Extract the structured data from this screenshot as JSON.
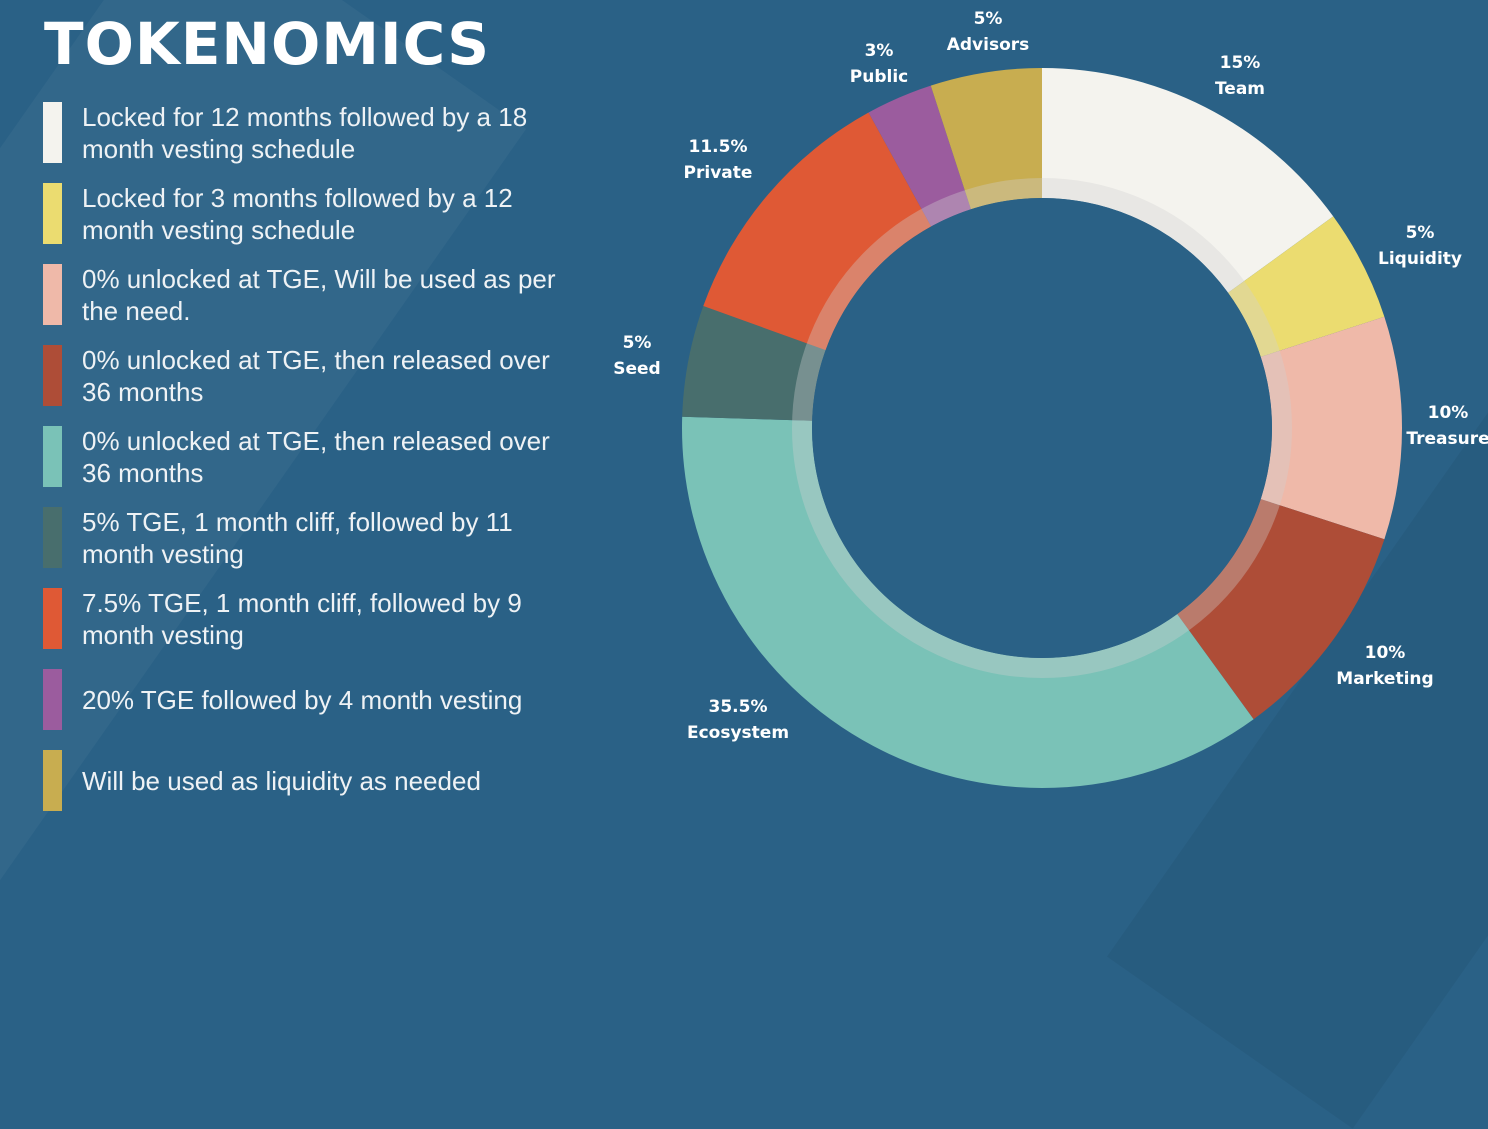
{
  "chart_data": {
    "type": "pie",
    "title": "TOKENOMICS",
    "donut": true,
    "slices": [
      {
        "label": "Team",
        "value": 15,
        "value_label": "15%",
        "color": "#f4f3ee",
        "legend": "Locked for 12 months followed by a 18 month vesting schedule"
      },
      {
        "label": "Liquidity",
        "value": 5,
        "value_label": "5%",
        "color": "#ebdc70",
        "legend": "Locked for 3 months followed by a 12 month vesting schedule"
      },
      {
        "label": "Treasure",
        "value": 10,
        "value_label": "10%",
        "color": "#efb9a9",
        "legend": "0% unlocked at TGE, Will be used as per the need."
      },
      {
        "label": "Marketing",
        "value": 10,
        "value_label": "10%",
        "color": "#ae4d37",
        "legend": "0% unlocked at TGE, then released over 36 months"
      },
      {
        "label": "Ecosystem",
        "value": 35.5,
        "value_label": "35.5%",
        "color": "#7ac2b7",
        "legend": "0% unlocked at TGE, then released over 36 months"
      },
      {
        "label": "Seed",
        "value": 5,
        "value_label": "5%",
        "color": "#486e6d",
        "legend": "5% TGE, 1 month cliff,  followed by 11 month vesting"
      },
      {
        "label": "Private",
        "value": 11.5,
        "value_label": "11.5%",
        "color": "#df5935",
        "legend": "7.5% TGE, 1 month cliff, followed by 9 month vesting"
      },
      {
        "label": "Public",
        "value": 3,
        "value_label": "3%",
        "color": "#9b5c9e",
        "legend": "20% TGE followed by 4 month vesting"
      },
      {
        "label": "Advisors",
        "value": 5,
        "value_label": "5%",
        "color": "#c8ad50",
        "legend": "Will be used as liquidity as needed"
      }
    ],
    "legend_placement": "left"
  },
  "colors": {
    "background": "#2a6186"
  }
}
